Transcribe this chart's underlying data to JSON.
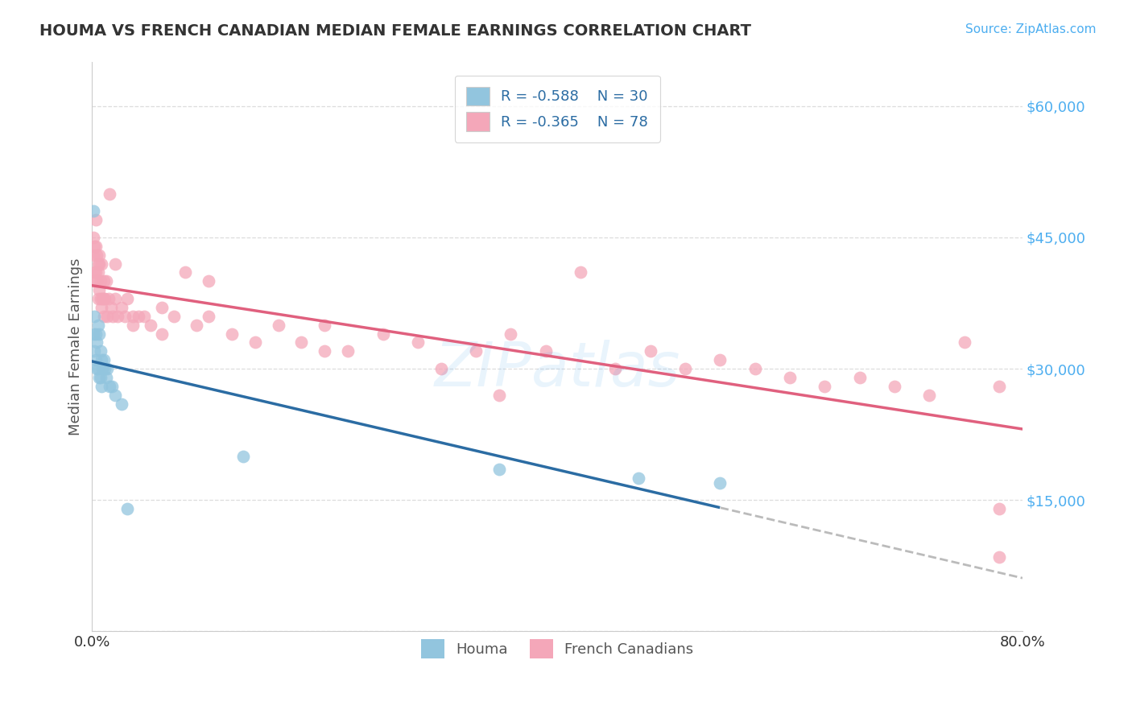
{
  "title": "HOUMA VS FRENCH CANADIAN MEDIAN FEMALE EARNINGS CORRELATION CHART",
  "source": "Source: ZipAtlas.com",
  "ylabel": "Median Female Earnings",
  "houma_R": -0.588,
  "houma_N": 30,
  "french_R": -0.365,
  "french_N": 78,
  "houma_color": "#92c5de",
  "french_color": "#f4a7b9",
  "houma_line_color": "#2b6ca3",
  "french_line_color": "#e0607e",
  "dashed_line_color": "#bbbbbb",
  "watermark_text": "ZIPatlas",
  "watermark_color": "#55aaee",
  "title_color": "#333333",
  "source_color": "#4daef0",
  "ytick_color": "#4daef0",
  "grid_color": "#dddddd",
  "houma_x": [
    0.001,
    0.001,
    0.002,
    0.002,
    0.003,
    0.003,
    0.004,
    0.004,
    0.005,
    0.005,
    0.006,
    0.006,
    0.007,
    0.007,
    0.008,
    0.008,
    0.009,
    0.01,
    0.011,
    0.012,
    0.013,
    0.015,
    0.017,
    0.02,
    0.025,
    0.03,
    0.13,
    0.35,
    0.47,
    0.54
  ],
  "houma_y": [
    48000,
    34000,
    36000,
    32000,
    34000,
    31000,
    33000,
    30000,
    35000,
    30000,
    34000,
    29000,
    32000,
    29000,
    31000,
    28000,
    30000,
    31000,
    30000,
    29000,
    30000,
    28000,
    28000,
    27000,
    26000,
    14000,
    20000,
    18500,
    17500,
    17000
  ],
  "french_x": [
    0.001,
    0.001,
    0.001,
    0.002,
    0.002,
    0.003,
    0.003,
    0.004,
    0.004,
    0.005,
    0.005,
    0.005,
    0.006,
    0.006,
    0.007,
    0.007,
    0.008,
    0.008,
    0.009,
    0.01,
    0.01,
    0.011,
    0.012,
    0.013,
    0.014,
    0.015,
    0.016,
    0.018,
    0.02,
    0.022,
    0.025,
    0.028,
    0.03,
    0.035,
    0.04,
    0.045,
    0.05,
    0.06,
    0.07,
    0.08,
    0.09,
    0.1,
    0.12,
    0.14,
    0.16,
    0.18,
    0.2,
    0.22,
    0.25,
    0.28,
    0.3,
    0.33,
    0.36,
    0.39,
    0.42,
    0.45,
    0.48,
    0.51,
    0.54,
    0.57,
    0.6,
    0.63,
    0.66,
    0.69,
    0.72,
    0.75,
    0.78,
    0.003,
    0.006,
    0.01,
    0.02,
    0.035,
    0.06,
    0.1,
    0.2,
    0.35,
    0.78,
    0.78
  ],
  "french_y": [
    45000,
    43000,
    40000,
    44000,
    41000,
    44000,
    41000,
    43000,
    40000,
    42000,
    41000,
    38000,
    42000,
    39000,
    40000,
    38000,
    42000,
    37000,
    38000,
    40000,
    36000,
    38000,
    40000,
    36000,
    38000,
    50000,
    37000,
    36000,
    38000,
    36000,
    37000,
    36000,
    38000,
    35000,
    36000,
    36000,
    35000,
    34000,
    36000,
    41000,
    35000,
    40000,
    34000,
    33000,
    35000,
    33000,
    35000,
    32000,
    34000,
    33000,
    30000,
    32000,
    34000,
    32000,
    41000,
    30000,
    32000,
    30000,
    31000,
    30000,
    29000,
    28000,
    29000,
    28000,
    27000,
    33000,
    28000,
    47000,
    43000,
    38000,
    42000,
    36000,
    37000,
    36000,
    32000,
    27000,
    14000,
    8500
  ],
  "ylim": [
    0,
    65000
  ],
  "xlim": [
    0.0,
    0.8
  ],
  "ytick_vals": [
    0,
    15000,
    30000,
    45000,
    60000
  ],
  "ytick_labels": [
    "",
    "$15,000",
    "$30,000",
    "$45,000",
    "$60,000"
  ]
}
